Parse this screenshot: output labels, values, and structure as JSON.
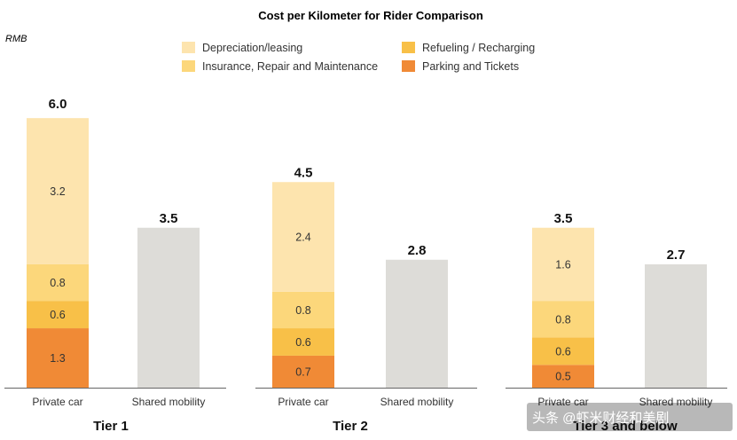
{
  "chart_data": {
    "type": "bar",
    "stacked": true,
    "title": "Cost per Kilometer for Rider Comparison",
    "unit": "RMB",
    "legend_position": "top",
    "legend": [
      {
        "name": "Depreciation/leasing",
        "color": "#fde4ae"
      },
      {
        "name": "Refueling / Recharging",
        "color": "#f8c048"
      },
      {
        "name": "Insurance, Repair and Maintenance",
        "color": "#fcd77b"
      },
      {
        "name": "Parking and Tickets",
        "color": "#f08a36"
      }
    ],
    "groups": [
      {
        "name": "Tier 1",
        "bars": [
          {
            "label": "Private car",
            "total": "6.0",
            "total_value": 6.0,
            "segments": [
              {
                "series": "Parking and Tickets",
                "value": 1.3,
                "label": "1.3",
                "color": "#f08a36"
              },
              {
                "series": "Refueling / Recharging",
                "value": 0.6,
                "label": "0.6",
                "color": "#f8c048"
              },
              {
                "series": "Insurance, Repair and Maintenance",
                "value": 0.8,
                "label": "0.8",
                "color": "#fcd77b"
              },
              {
                "series": "Depreciation/leasing",
                "value": 3.2,
                "label": "3.2",
                "color": "#fde4ae"
              }
            ]
          },
          {
            "label": "Shared mobility",
            "total": "3.5",
            "total_value": 3.5,
            "segments": [
              {
                "series": "Shared mobility",
                "value": 3.5,
                "label": "",
                "color": "#dddcd8"
              }
            ]
          }
        ]
      },
      {
        "name": "Tier 2",
        "bars": [
          {
            "label": "Private car",
            "total": "4.5",
            "total_value": 4.5,
            "segments": [
              {
                "series": "Parking and Tickets",
                "value": 0.7,
                "label": "0.7",
                "color": "#f08a36"
              },
              {
                "series": "Refueling / Recharging",
                "value": 0.6,
                "label": "0.6",
                "color": "#f8c048"
              },
              {
                "series": "Insurance, Repair and Maintenance",
                "value": 0.8,
                "label": "0.8",
                "color": "#fcd77b"
              },
              {
                "series": "Depreciation/leasing",
                "value": 2.4,
                "label": "2.4",
                "color": "#fde4ae"
              }
            ]
          },
          {
            "label": "Shared mobility",
            "total": "2.8",
            "total_value": 2.8,
            "segments": [
              {
                "series": "Shared mobility",
                "value": 2.8,
                "label": "",
                "color": "#dddcd8"
              }
            ]
          }
        ]
      },
      {
        "name": "Tier 3 and below",
        "bars": [
          {
            "label": "Private car",
            "total": "3.5",
            "total_value": 3.5,
            "segments": [
              {
                "series": "Parking and Tickets",
                "value": 0.5,
                "label": "0.5",
                "color": "#f08a36"
              },
              {
                "series": "Refueling / Recharging",
                "value": 0.6,
                "label": "0.6",
                "color": "#f8c048"
              },
              {
                "series": "Insurance, Repair and Maintenance",
                "value": 0.8,
                "label": "0.8",
                "color": "#fcd77b"
              },
              {
                "series": "Depreciation/leasing",
                "value": 1.6,
                "label": "1.6",
                "color": "#fde4ae"
              }
            ]
          },
          {
            "label": "Shared mobility",
            "total": "2.7",
            "total_value": 2.7,
            "segments": [
              {
                "series": "Shared mobility",
                "value": 2.7,
                "label": "",
                "color": "#dddcd8"
              }
            ]
          }
        ]
      }
    ],
    "ylim": [
      0,
      6.5
    ]
  },
  "watermark": "头条 @虾米财经和美剧"
}
